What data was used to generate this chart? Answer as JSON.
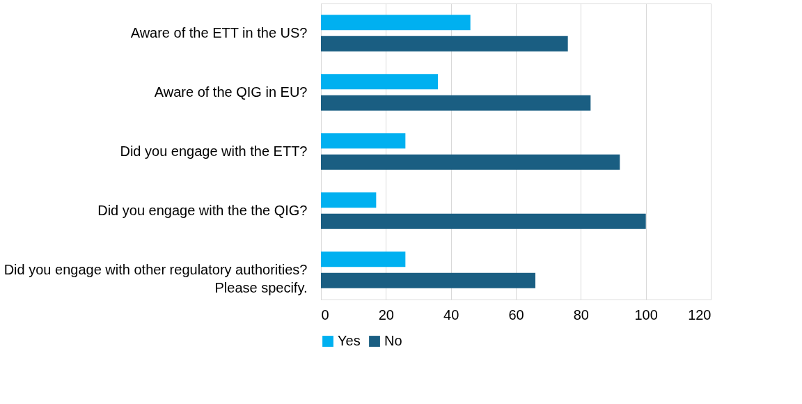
{
  "chart_data": {
    "type": "bar",
    "orientation": "horizontal",
    "categories": [
      "Aware of the ETT in the US?",
      "Aware of the QIG in EU?",
      "Did you engage with the ETT?",
      "Did you engage with the the QIG?",
      "Did you engage with other regulatory authorities?\nPlease specify."
    ],
    "series": [
      {
        "name": "Yes",
        "color": "#00b0f0",
        "values": [
          46,
          36,
          26,
          17,
          26
        ]
      },
      {
        "name": "No",
        "color": "#1a5e82",
        "values": [
          76,
          83,
          92,
          100,
          66
        ]
      }
    ],
    "xlim": [
      0,
      120
    ],
    "xticks": [
      0,
      20,
      40,
      60,
      80,
      100,
      120
    ],
    "grid": "x",
    "legend": "bottom"
  }
}
